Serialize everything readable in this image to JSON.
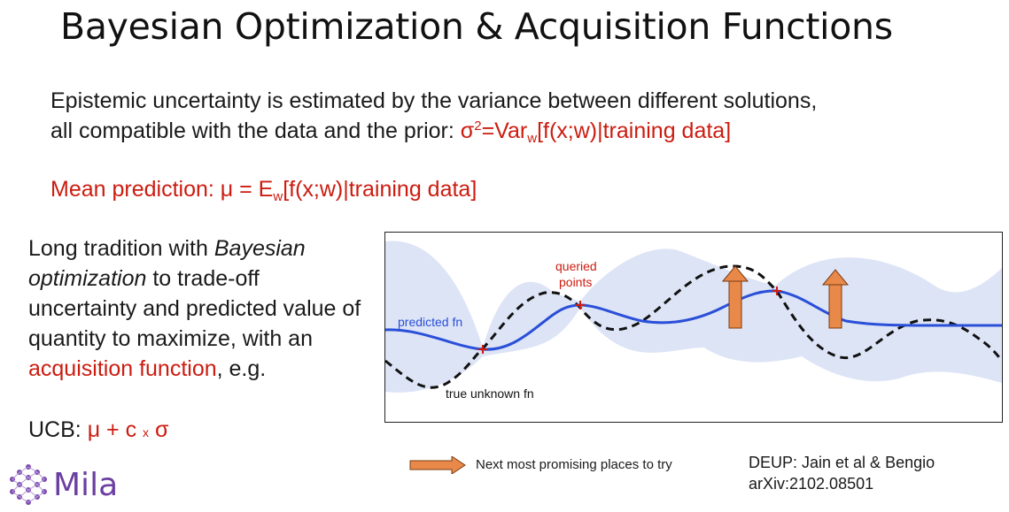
{
  "slide": {
    "title": "Bayesian Optimization & Acquisition Functions",
    "epistemic": {
      "text_line1": "Epistemic uncertainty is estimated by the variance between different solutions,",
      "text_line2_prefix": "all compatible with the data and the prior: ",
      "sigma": "σ",
      "sup": "2",
      "var_prefix": "=Var",
      "var_sub": "w",
      "var_suffix": "[f(x;w)|training data]"
    },
    "mean": {
      "prefix": "Mean prediction: μ = E",
      "sub": "w",
      "suffix": "[f(x;w)|training data]"
    },
    "tradition": {
      "part1": "Long tradition with ",
      "em": "Bayesian optimization",
      "part2": " to trade-off uncertainty and predicted value of quantity to maximize, with an ",
      "red": "acquisition function",
      "part3": ", e.g."
    },
    "ucb": {
      "label": "UCB: ",
      "formula_pre": "μ + c ",
      "times": "x",
      "formula_post": " σ"
    },
    "figure": {
      "label_predicted": "predicted fn",
      "label_true": "true unknown fn",
      "label_queried_line1": "queried",
      "label_queried_line2": "points"
    },
    "legend": {
      "text": "Next most promising places to try"
    },
    "citation": {
      "line1": "DEUP: Jain et al & Bengio",
      "line2": "arXiv:2102.08501"
    },
    "logo": {
      "text": "Mila"
    },
    "colors": {
      "accent_red": "#cc1c10",
      "predicted_blue": "#2a4fd8",
      "band_fill": "#dde4f6",
      "arrow_orange": "#e8894a",
      "logo_purple": "#6b3fa0"
    }
  }
}
